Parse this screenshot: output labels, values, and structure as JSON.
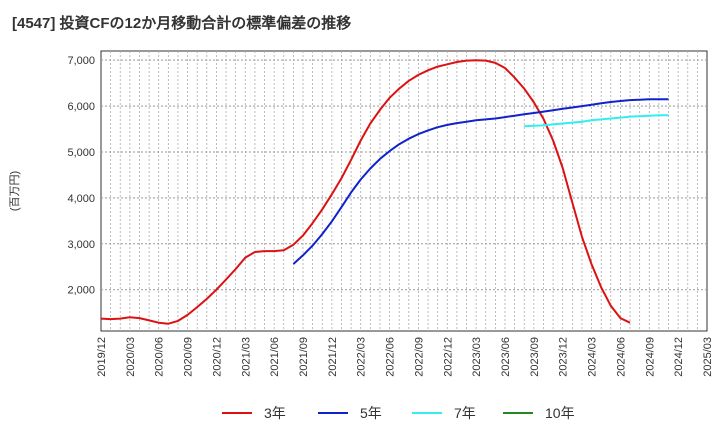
{
  "title": "[4547]  投資CFの12か月移動合計の標準偏差の推移",
  "chart_data": {
    "type": "line",
    "ylabel": "(百万円)",
    "ylim": [
      1100,
      7200
    ],
    "yticks": [
      2000,
      3000,
      4000,
      5000,
      6000,
      7000
    ],
    "ytick_labels": [
      "2,000",
      "3,000",
      "4,000",
      "5,000",
      "6,000",
      "7,000"
    ],
    "xlim": [
      "2019-12",
      "2025-03"
    ],
    "x_tick_labels": [
      "2019/12",
      "2020/03",
      "2020/06",
      "2020/09",
      "2020/12",
      "2021/03",
      "2021/06",
      "2021/09",
      "2021/12",
      "2022/03",
      "2022/06",
      "2022/09",
      "2022/12",
      "2023/03",
      "2023/06",
      "2023/09",
      "2023/12",
      "2024/03",
      "2024/06",
      "2024/09",
      "2024/12",
      "2025/03"
    ],
    "grid": true,
    "legend_position": "bottom",
    "series": [
      {
        "name": "3年",
        "color": "#dd1111",
        "start": "2019-12",
        "values": [
          1370,
          1360,
          1370,
          1400,
          1380,
          1330,
          1280,
          1260,
          1320,
          1450,
          1620,
          1800,
          2000,
          2220,
          2450,
          2700,
          2820,
          2840,
          2840,
          2860,
          2980,
          3180,
          3450,
          3750,
          4080,
          4430,
          4830,
          5250,
          5620,
          5920,
          6180,
          6380,
          6550,
          6680,
          6780,
          6860,
          6910,
          6960,
          6990,
          7000,
          6990,
          6940,
          6830,
          6620,
          6380,
          6080,
          5720,
          5250,
          4650,
          3900,
          3150,
          2550,
          2050,
          1650,
          1380,
          1280
        ]
      },
      {
        "name": "5年",
        "color": "#1122cc",
        "start": "2021-08",
        "values": [
          2560,
          2750,
          2960,
          3210,
          3490,
          3800,
          4120,
          4400,
          4640,
          4850,
          5020,
          5170,
          5290,
          5390,
          5470,
          5540,
          5590,
          5630,
          5660,
          5690,
          5710,
          5730,
          5760,
          5790,
          5820,
          5850,
          5880,
          5910,
          5940,
          5970,
          6000,
          6030,
          6060,
          6090,
          6110,
          6130,
          6140,
          6150,
          6150,
          6150
        ]
      },
      {
        "name": "7年",
        "color": "#33eeee",
        "start": "2023-08",
        "values": [
          5560,
          5570,
          5580,
          5600,
          5620,
          5640,
          5660,
          5690,
          5710,
          5730,
          5750,
          5770,
          5780,
          5790,
          5800,
          5800
        ]
      },
      {
        "name": "10年",
        "color": "#228822",
        "start": "2024-10",
        "values": []
      }
    ]
  }
}
